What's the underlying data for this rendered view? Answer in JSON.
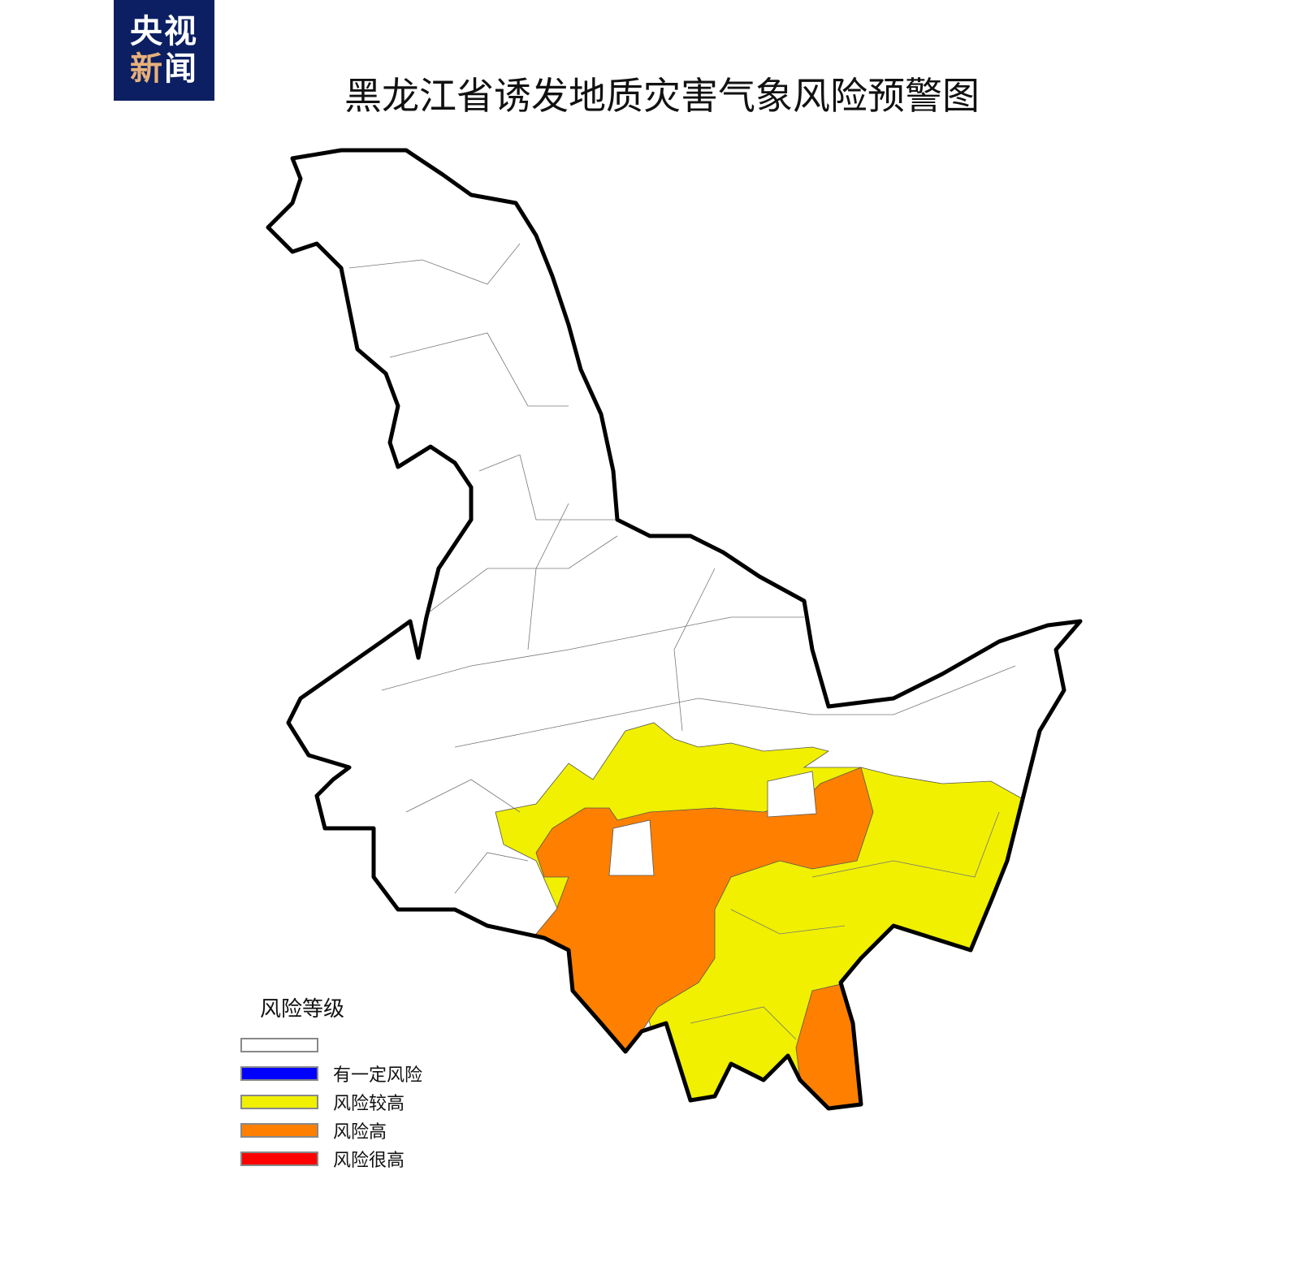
{
  "logo": {
    "line1": "央视",
    "line2a": "新",
    "line2b": "闻"
  },
  "title": "黑龙江省诱发地质灾害气象风险预警图",
  "legend": {
    "title": "风险等级",
    "items": [
      {
        "label": "",
        "color": "#ffffff"
      },
      {
        "label": "有一定风险",
        "color": "#0000ff"
      },
      {
        "label": "风险较高",
        "color": "#f0f000"
      },
      {
        "label": "风险高",
        "color": "#ff8000"
      },
      {
        "label": "风险很高",
        "color": "#ff0000"
      }
    ]
  },
  "map_colors": {
    "outline": "#000000",
    "none": "#ffffff",
    "high": "#ff8000",
    "elevated": "#f0f000"
  }
}
